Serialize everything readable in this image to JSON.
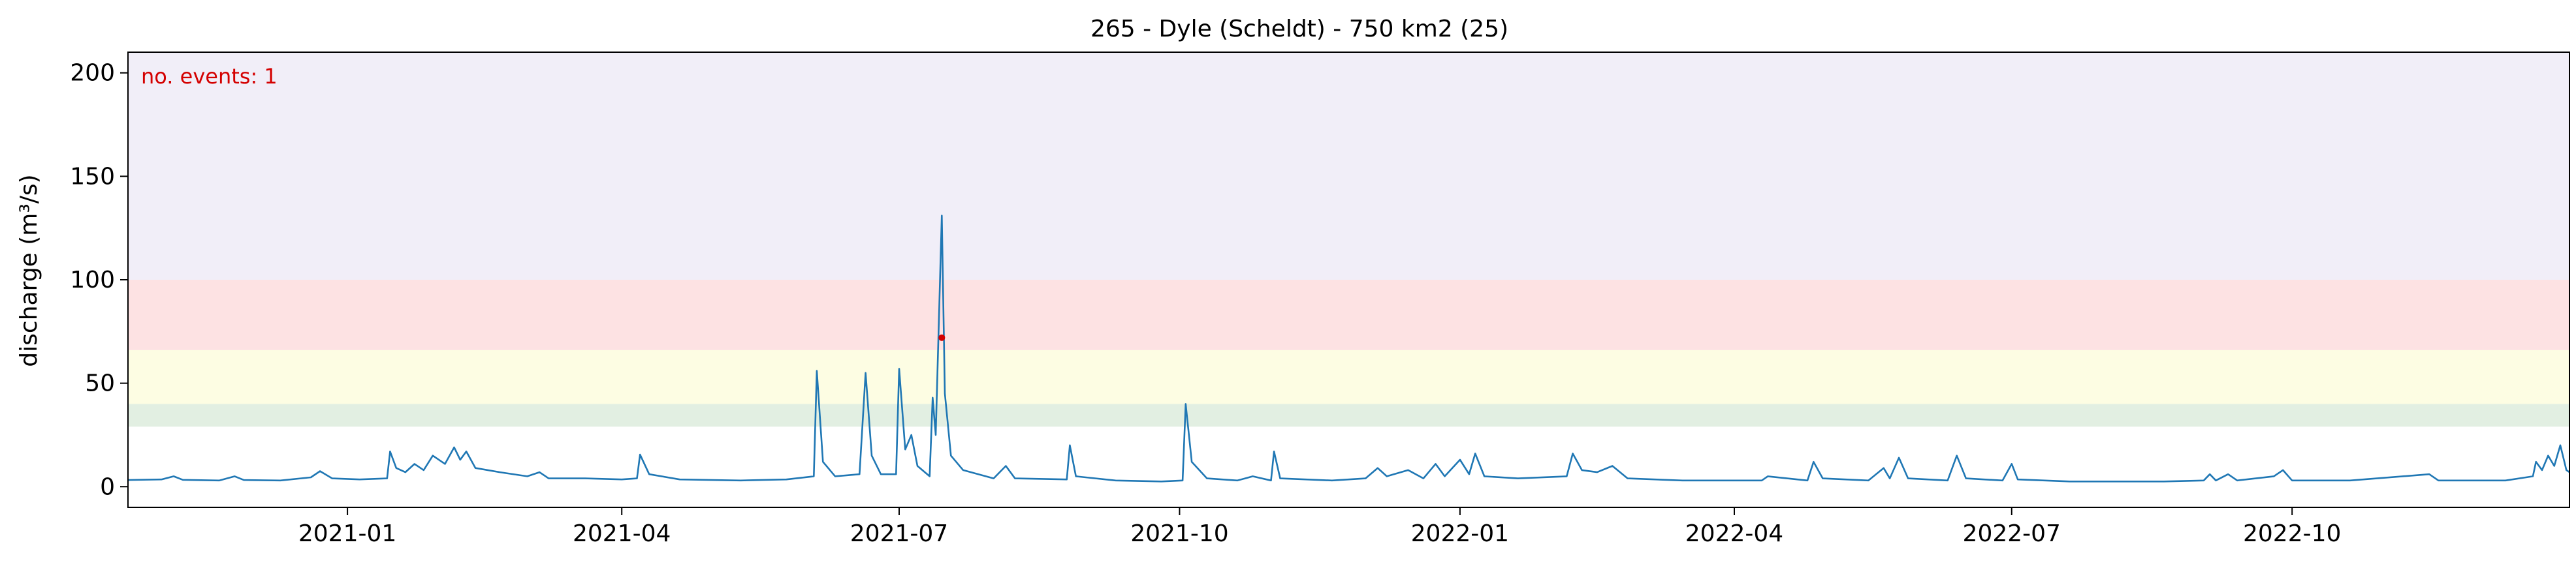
{
  "chart_data": {
    "type": "line",
    "title": "265 - Dyle (Scheldt) - 750 km2 (25)",
    "xlabel": "",
    "ylabel": "discharge (m³/s)",
    "xlim": [
      "2020-10-21",
      "2022-12-31"
    ],
    "ylim": [
      -10,
      210
    ],
    "grid": false,
    "yticks": [
      0,
      50,
      100,
      150,
      200
    ],
    "xticks": [
      {
        "date": "2021-01-01",
        "label": "2021-01"
      },
      {
        "date": "2021-04-01",
        "label": "2021-04"
      },
      {
        "date": "2021-07-01",
        "label": "2021-07"
      },
      {
        "date": "2021-10-01",
        "label": "2021-10"
      },
      {
        "date": "2022-01-01",
        "label": "2022-01"
      },
      {
        "date": "2022-04-01",
        "label": "2022-04"
      },
      {
        "date": "2022-07-01",
        "label": "2022-07"
      },
      {
        "date": "2022-10-01",
        "label": "2022-10"
      }
    ],
    "bands": [
      {
        "y0": 29,
        "y1": 40,
        "color": "#e2efe2"
      },
      {
        "y0": 40,
        "y1": 66,
        "color": "#fdfde3"
      },
      {
        "y0": 66,
        "y1": 100,
        "color": "#fde2e3"
      },
      {
        "y0": 100,
        "y1": 210,
        "color": "#f1eef8"
      }
    ],
    "annotation": {
      "text": "no. events: 1",
      "color": "#d40000"
    },
    "series": [
      {
        "color": "#1f77b4",
        "points": [
          [
            "2020-10-21",
            3.2
          ],
          [
            "2020-11-01",
            3.5
          ],
          [
            "2020-11-05",
            5.0
          ],
          [
            "2020-11-08",
            3.3
          ],
          [
            "2020-11-20",
            3.0
          ],
          [
            "2020-11-25",
            5.0
          ],
          [
            "2020-11-28",
            3.2
          ],
          [
            "2020-12-10",
            3.0
          ],
          [
            "2020-12-20",
            4.5
          ],
          [
            "2020-12-23",
            7.5
          ],
          [
            "2020-12-27",
            4.0
          ],
          [
            "2021-01-05",
            3.5
          ],
          [
            "2021-01-14",
            4.0
          ],
          [
            "2021-01-15",
            17.0
          ],
          [
            "2021-01-17",
            9.0
          ],
          [
            "2021-01-20",
            7.0
          ],
          [
            "2021-01-23",
            11.0
          ],
          [
            "2021-01-26",
            8.0
          ],
          [
            "2021-01-29",
            15.0
          ],
          [
            "2021-02-02",
            11.0
          ],
          [
            "2021-02-05",
            19.0
          ],
          [
            "2021-02-07",
            13.0
          ],
          [
            "2021-02-09",
            17.0
          ],
          [
            "2021-02-12",
            9.0
          ],
          [
            "2021-02-20",
            7.0
          ],
          [
            "2021-03-01",
            5.0
          ],
          [
            "2021-03-05",
            7.0
          ],
          [
            "2021-03-08",
            4.0
          ],
          [
            "2021-03-20",
            4.0
          ],
          [
            "2021-04-01",
            3.5
          ],
          [
            "2021-04-06",
            4.0
          ],
          [
            "2021-04-07",
            15.5
          ],
          [
            "2021-04-10",
            6.0
          ],
          [
            "2021-04-20",
            3.5
          ],
          [
            "2021-05-10",
            3.0
          ],
          [
            "2021-05-25",
            3.5
          ],
          [
            "2021-06-03",
            5.0
          ],
          [
            "2021-06-04",
            56.0
          ],
          [
            "2021-06-06",
            12.0
          ],
          [
            "2021-06-10",
            5.0
          ],
          [
            "2021-06-18",
            6.0
          ],
          [
            "2021-06-20",
            55.0
          ],
          [
            "2021-06-22",
            15.0
          ],
          [
            "2021-06-25",
            6.0
          ],
          [
            "2021-06-30",
            6.0
          ],
          [
            "2021-07-01",
            57.0
          ],
          [
            "2021-07-03",
            18.0
          ],
          [
            "2021-07-05",
            25.0
          ],
          [
            "2021-07-07",
            10.0
          ],
          [
            "2021-07-11",
            5.0
          ],
          [
            "2021-07-12",
            43.0
          ],
          [
            "2021-07-13",
            25.0
          ],
          [
            "2021-07-15",
            131.0
          ],
          [
            "2021-07-16",
            45.0
          ],
          [
            "2021-07-18",
            15.0
          ],
          [
            "2021-07-22",
            8.0
          ],
          [
            "2021-08-01",
            4.0
          ],
          [
            "2021-08-05",
            10.0
          ],
          [
            "2021-08-08",
            4.0
          ],
          [
            "2021-08-25",
            3.5
          ],
          [
            "2021-08-26",
            20.0
          ],
          [
            "2021-08-28",
            5.0
          ],
          [
            "2021-09-10",
            3.0
          ],
          [
            "2021-09-25",
            2.5
          ],
          [
            "2021-10-02",
            3.0
          ],
          [
            "2021-10-03",
            40.0
          ],
          [
            "2021-10-05",
            12.0
          ],
          [
            "2021-10-10",
            4.0
          ],
          [
            "2021-10-20",
            3.0
          ],
          [
            "2021-10-25",
            5.0
          ],
          [
            "2021-10-31",
            3.0
          ],
          [
            "2021-11-01",
            17.0
          ],
          [
            "2021-11-03",
            4.0
          ],
          [
            "2021-11-20",
            3.0
          ],
          [
            "2021-12-01",
            4.0
          ],
          [
            "2021-12-05",
            9.0
          ],
          [
            "2021-12-08",
            5.0
          ],
          [
            "2021-12-15",
            8.0
          ],
          [
            "2021-12-20",
            4.0
          ],
          [
            "2021-12-24",
            11.0
          ],
          [
            "2021-12-27",
            5.0
          ],
          [
            "2022-01-01",
            13.0
          ],
          [
            "2022-01-04",
            6.0
          ],
          [
            "2022-01-06",
            16.0
          ],
          [
            "2022-01-09",
            5.0
          ],
          [
            "2022-01-20",
            4.0
          ],
          [
            "2022-02-05",
            5.0
          ],
          [
            "2022-02-07",
            16.0
          ],
          [
            "2022-02-10",
            8.0
          ],
          [
            "2022-02-15",
            7.0
          ],
          [
            "2022-02-20",
            10.0
          ],
          [
            "2022-02-25",
            4.0
          ],
          [
            "2022-03-15",
            3.0
          ],
          [
            "2022-04-10",
            3.0
          ],
          [
            "2022-04-12",
            5.0
          ],
          [
            "2022-04-25",
            3.0
          ],
          [
            "2022-04-27",
            12.0
          ],
          [
            "2022-04-30",
            4.0
          ],
          [
            "2022-05-15",
            3.0
          ],
          [
            "2022-05-20",
            9.0
          ],
          [
            "2022-05-22",
            4.0
          ],
          [
            "2022-05-25",
            14.0
          ],
          [
            "2022-05-28",
            4.0
          ],
          [
            "2022-06-10",
            3.0
          ],
          [
            "2022-06-13",
            15.0
          ],
          [
            "2022-06-16",
            4.0
          ],
          [
            "2022-06-28",
            3.0
          ],
          [
            "2022-07-01",
            11.0
          ],
          [
            "2022-07-03",
            3.5
          ],
          [
            "2022-07-20",
            2.5
          ],
          [
            "2022-08-20",
            2.5
          ],
          [
            "2022-09-02",
            3.0
          ],
          [
            "2022-09-04",
            6.0
          ],
          [
            "2022-09-06",
            3.0
          ],
          [
            "2022-09-10",
            6.0
          ],
          [
            "2022-09-13",
            3.0
          ],
          [
            "2022-09-25",
            5.0
          ],
          [
            "2022-09-28",
            8.0
          ],
          [
            "2022-10-01",
            3.0
          ],
          [
            "2022-10-20",
            3.0
          ],
          [
            "2022-11-15",
            6.0
          ],
          [
            "2022-11-18",
            3.0
          ],
          [
            "2022-12-10",
            3.0
          ],
          [
            "2022-12-19",
            5.0
          ],
          [
            "2022-12-20",
            12.0
          ],
          [
            "2022-12-22",
            8.0
          ],
          [
            "2022-12-24",
            15.0
          ],
          [
            "2022-12-26",
            10.0
          ],
          [
            "2022-12-28",
            20.0
          ],
          [
            "2022-12-30",
            8.0
          ],
          [
            "2022-12-31",
            7.0
          ]
        ]
      }
    ],
    "events": [
      {
        "date": "2021-07-15",
        "value": 72,
        "color": "#d40000"
      }
    ]
  }
}
